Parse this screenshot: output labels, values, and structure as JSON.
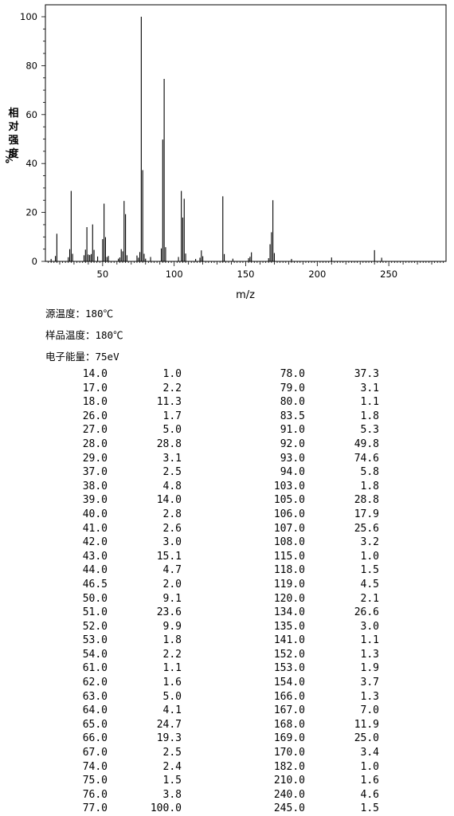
{
  "chart_data": {
    "type": "bar",
    "xlabel": "m/z",
    "ylabel_lines": [
      "相",
      "对",
      "强",
      "度"
    ],
    "ylabel_unit": "%/",
    "xlim": [
      10,
      290
    ],
    "ylim": [
      0,
      105
    ],
    "x_ticks": [
      50,
      100,
      150,
      200,
      250
    ],
    "y_ticks": [
      0,
      20,
      40,
      60,
      80,
      100
    ],
    "grid": false,
    "peaks": [
      {
        "mz": 14.0,
        "intensity": 1.0
      },
      {
        "mz": 17.0,
        "intensity": 2.2
      },
      {
        "mz": 18.0,
        "intensity": 11.3
      },
      {
        "mz": 26.0,
        "intensity": 1.7
      },
      {
        "mz": 27.0,
        "intensity": 5.0
      },
      {
        "mz": 28.0,
        "intensity": 28.8
      },
      {
        "mz": 29.0,
        "intensity": 3.1
      },
      {
        "mz": 37.0,
        "intensity": 2.5
      },
      {
        "mz": 38.0,
        "intensity": 4.8
      },
      {
        "mz": 39.0,
        "intensity": 14.0
      },
      {
        "mz": 40.0,
        "intensity": 2.8
      },
      {
        "mz": 41.0,
        "intensity": 2.6
      },
      {
        "mz": 42.0,
        "intensity": 3.0
      },
      {
        "mz": 43.0,
        "intensity": 15.1
      },
      {
        "mz": 44.0,
        "intensity": 4.7
      },
      {
        "mz": 46.5,
        "intensity": 2.0
      },
      {
        "mz": 50.0,
        "intensity": 9.1
      },
      {
        "mz": 51.0,
        "intensity": 23.6
      },
      {
        "mz": 52.0,
        "intensity": 9.9
      },
      {
        "mz": 53.0,
        "intensity": 1.8
      },
      {
        "mz": 54.0,
        "intensity": 2.2
      },
      {
        "mz": 61.0,
        "intensity": 1.1
      },
      {
        "mz": 62.0,
        "intensity": 1.6
      },
      {
        "mz": 63.0,
        "intensity": 5.0
      },
      {
        "mz": 64.0,
        "intensity": 4.1
      },
      {
        "mz": 65.0,
        "intensity": 24.7
      },
      {
        "mz": 66.0,
        "intensity": 19.3
      },
      {
        "mz": 67.0,
        "intensity": 2.5
      },
      {
        "mz": 74.0,
        "intensity": 2.4
      },
      {
        "mz": 75.0,
        "intensity": 1.5
      },
      {
        "mz": 76.0,
        "intensity": 3.8
      },
      {
        "mz": 77.0,
        "intensity": 100.0
      },
      {
        "mz": 78.0,
        "intensity": 37.3
      },
      {
        "mz": 79.0,
        "intensity": 3.1
      },
      {
        "mz": 80.0,
        "intensity": 1.1
      },
      {
        "mz": 83.5,
        "intensity": 1.8
      },
      {
        "mz": 91.0,
        "intensity": 5.3
      },
      {
        "mz": 92.0,
        "intensity": 49.8
      },
      {
        "mz": 93.0,
        "intensity": 74.6
      },
      {
        "mz": 94.0,
        "intensity": 5.8
      },
      {
        "mz": 103.0,
        "intensity": 1.8
      },
      {
        "mz": 105.0,
        "intensity": 28.8
      },
      {
        "mz": 106.0,
        "intensity": 17.9
      },
      {
        "mz": 107.0,
        "intensity": 25.6
      },
      {
        "mz": 108.0,
        "intensity": 3.2
      },
      {
        "mz": 115.0,
        "intensity": 1.0
      },
      {
        "mz": 118.0,
        "intensity": 1.5
      },
      {
        "mz": 119.0,
        "intensity": 4.5
      },
      {
        "mz": 120.0,
        "intensity": 2.1
      },
      {
        "mz": 134.0,
        "intensity": 26.6
      },
      {
        "mz": 135.0,
        "intensity": 3.0
      },
      {
        "mz": 141.0,
        "intensity": 1.1
      },
      {
        "mz": 152.0,
        "intensity": 1.3
      },
      {
        "mz": 153.0,
        "intensity": 1.9
      },
      {
        "mz": 154.0,
        "intensity": 3.7
      },
      {
        "mz": 166.0,
        "intensity": 1.3
      },
      {
        "mz": 167.0,
        "intensity": 7.0
      },
      {
        "mz": 168.0,
        "intensity": 11.9
      },
      {
        "mz": 169.0,
        "intensity": 25.0
      },
      {
        "mz": 170.0,
        "intensity": 3.4
      },
      {
        "mz": 182.0,
        "intensity": 1.0
      },
      {
        "mz": 210.0,
        "intensity": 1.6
      },
      {
        "mz": 240.0,
        "intensity": 4.6
      },
      {
        "mz": 245.0,
        "intensity": 1.5
      }
    ]
  },
  "conditions": {
    "source_temp": "源温度：180℃",
    "sample_temp": "样品温度：180℃",
    "electron_energy": "电子能量：75eV"
  },
  "table_left": [
    [
      "14.0",
      "1.0"
    ],
    [
      "17.0",
      "2.2"
    ],
    [
      "18.0",
      "11.3"
    ],
    [
      "26.0",
      "1.7"
    ],
    [
      "27.0",
      "5.0"
    ],
    [
      "28.0",
      "28.8"
    ],
    [
      "29.0",
      "3.1"
    ],
    [
      "37.0",
      "2.5"
    ],
    [
      "38.0",
      "4.8"
    ],
    [
      "39.0",
      "14.0"
    ],
    [
      "40.0",
      "2.8"
    ],
    [
      "41.0",
      "2.6"
    ],
    [
      "42.0",
      "3.0"
    ],
    [
      "43.0",
      "15.1"
    ],
    [
      "44.0",
      "4.7"
    ],
    [
      "46.5",
      "2.0"
    ],
    [
      "50.0",
      "9.1"
    ],
    [
      "51.0",
      "23.6"
    ],
    [
      "52.0",
      "9.9"
    ],
    [
      "53.0",
      "1.8"
    ],
    [
      "54.0",
      "2.2"
    ],
    [
      "61.0",
      "1.1"
    ],
    [
      "62.0",
      "1.6"
    ],
    [
      "63.0",
      "5.0"
    ],
    [
      "64.0",
      "4.1"
    ],
    [
      "65.0",
      "24.7"
    ],
    [
      "66.0",
      "19.3"
    ],
    [
      "67.0",
      "2.5"
    ],
    [
      "74.0",
      "2.4"
    ],
    [
      "75.0",
      "1.5"
    ],
    [
      "76.0",
      "3.8"
    ],
    [
      "77.0",
      "100.0"
    ]
  ],
  "table_right": [
    [
      "78.0",
      "37.3"
    ],
    [
      "79.0",
      "3.1"
    ],
    [
      "80.0",
      "1.1"
    ],
    [
      "83.5",
      "1.8"
    ],
    [
      "91.0",
      "5.3"
    ],
    [
      "92.0",
      "49.8"
    ],
    [
      "93.0",
      "74.6"
    ],
    [
      "94.0",
      "5.8"
    ],
    [
      "103.0",
      "1.8"
    ],
    [
      "105.0",
      "28.8"
    ],
    [
      "106.0",
      "17.9"
    ],
    [
      "107.0",
      "25.6"
    ],
    [
      "108.0",
      "3.2"
    ],
    [
      "115.0",
      "1.0"
    ],
    [
      "118.0",
      "1.5"
    ],
    [
      "119.0",
      "4.5"
    ],
    [
      "120.0",
      "2.1"
    ],
    [
      "134.0",
      "26.6"
    ],
    [
      "135.0",
      "3.0"
    ],
    [
      "141.0",
      "1.1"
    ],
    [
      "152.0",
      "1.3"
    ],
    [
      "153.0",
      "1.9"
    ],
    [
      "154.0",
      "3.7"
    ],
    [
      "166.0",
      "1.3"
    ],
    [
      "167.0",
      "7.0"
    ],
    [
      "168.0",
      "11.9"
    ],
    [
      "169.0",
      "25.0"
    ],
    [
      "170.0",
      "3.4"
    ],
    [
      "182.0",
      "1.0"
    ],
    [
      "210.0",
      "1.6"
    ],
    [
      "240.0",
      "4.6"
    ],
    [
      "245.0",
      "1.5"
    ]
  ]
}
